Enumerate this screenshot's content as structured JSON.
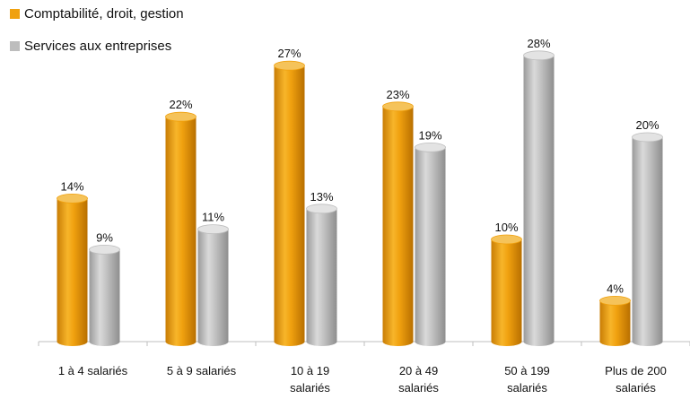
{
  "chart_data": {
    "type": "bar",
    "categories": [
      [
        "1 à 4 salariés"
      ],
      [
        "5 à 9 salariés"
      ],
      [
        "10 à 19",
        "salariés"
      ],
      [
        "20 à 49",
        "salariés"
      ],
      [
        "50 à 199",
        "salariés"
      ],
      [
        "Plus de 200",
        "salariés"
      ]
    ],
    "series": [
      {
        "name": "Comptabilité, droit, gestion",
        "color": "#f0a10f",
        "values": [
          14,
          22,
          27,
          23,
          10,
          4
        ],
        "labels": [
          "14%",
          "22%",
          "27%",
          "23%",
          "10%",
          "4%"
        ]
      },
      {
        "name": "Services aux entreprises",
        "color": "#bdbdbd",
        "values": [
          9,
          11,
          13,
          19,
          28,
          20
        ],
        "labels": [
          "9%",
          "11%",
          "13%",
          "19%",
          "28%",
          "20%"
        ]
      }
    ],
    "value_suffix": "%",
    "ylim": [
      0,
      30
    ],
    "grid": false,
    "legend_position": "top-left",
    "title": "",
    "xlabel": "",
    "ylabel": ""
  }
}
